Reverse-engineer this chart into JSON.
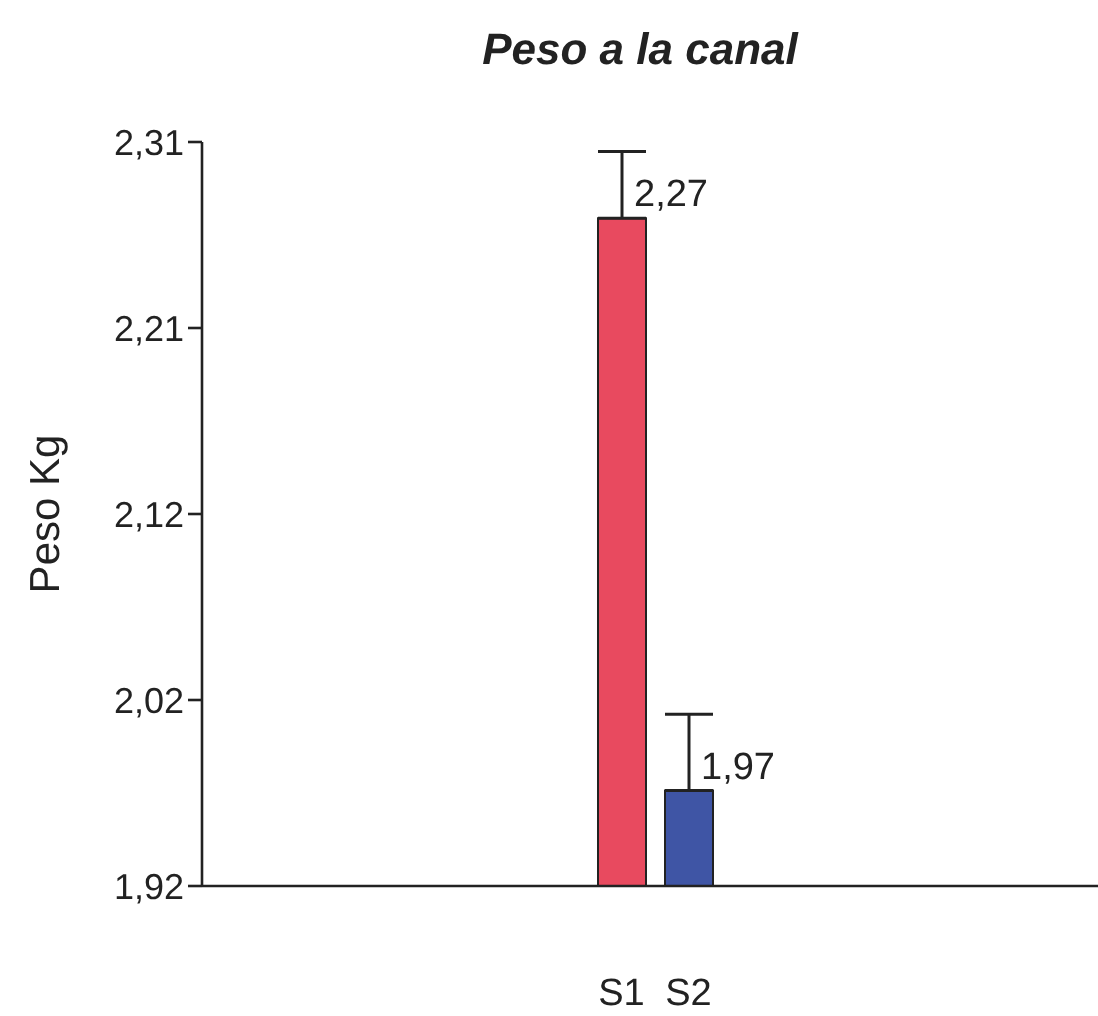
{
  "chart_data": {
    "type": "bar",
    "title": "Peso a la canal",
    "ylabel": "Peso Kg",
    "categories": [
      "S1",
      "S2"
    ],
    "values": [
      2.27,
      1.97
    ],
    "colors": [
      "#e84a5f",
      "#3f55a5"
    ],
    "errors": [
      [
        2.27,
        2.305
      ],
      [
        1.97,
        2.01
      ]
    ],
    "value_labels": [
      "2,27",
      "1,97"
    ],
    "ylim": [
      1.92,
      2.31
    ],
    "yticks": [
      {
        "value": 1.92,
        "label": "1,92"
      },
      {
        "value": 2.0175,
        "label": "2,02"
      },
      {
        "value": 2.115,
        "label": "2,12"
      },
      {
        "value": 2.2125,
        "label": "2,21"
      },
      {
        "value": 2.31,
        "label": "2,31"
      }
    ]
  }
}
